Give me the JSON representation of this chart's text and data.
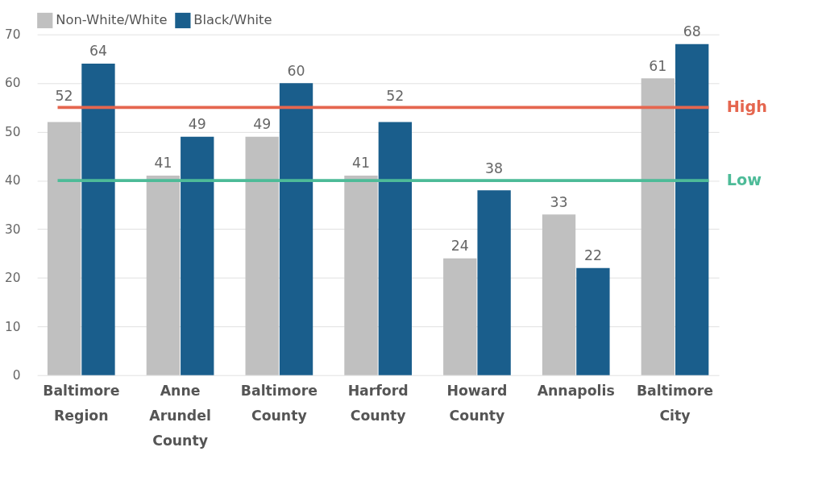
{
  "chart_data": {
    "type": "bar",
    "categories": [
      "Baltimore Region",
      "Anne Arundel County",
      "Baltimore County",
      "Harford County",
      "Howard County",
      "Annapolis",
      "Baltimore City"
    ],
    "series": [
      {
        "name": "Non-White/White",
        "color": "#c0c0c0",
        "values": [
          52,
          41,
          49,
          41,
          24,
          33,
          61
        ]
      },
      {
        "name": "Black/White",
        "color": "#1a5e8c",
        "values": [
          64,
          49,
          60,
          52,
          38,
          22,
          68
        ]
      }
    ],
    "ylim": [
      0,
      70
    ],
    "yticks": [
      0,
      10,
      20,
      30,
      40,
      50,
      60,
      70
    ],
    "grid": "y",
    "legend": "top left",
    "data_labels": true,
    "ref_lines": [
      {
        "axis": "y",
        "value": 55,
        "label": "High",
        "color": "#e5664f"
      },
      {
        "axis": "y",
        "value": 40,
        "label": "Low",
        "color": "#4dbb98"
      }
    ]
  }
}
